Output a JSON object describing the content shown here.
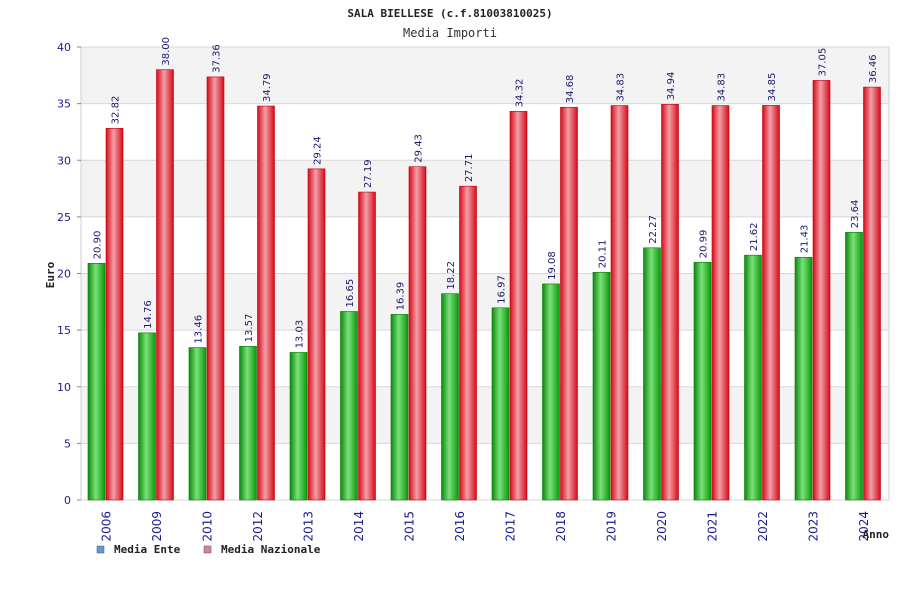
{
  "chart_data": {
    "type": "bar",
    "title": "SALA BIELLESE (c.f.81003810025)",
    "subtitle": "Media Importi",
    "ylabel": "Euro",
    "xlabel": "Anno",
    "ylim": [
      0,
      40
    ],
    "yticks": [
      0,
      5,
      10,
      15,
      20,
      25,
      30,
      35,
      40
    ],
    "categories": [
      "2006",
      "2009",
      "2010",
      "2012",
      "2013",
      "2014",
      "2015",
      "2016",
      "2017",
      "2018",
      "2019",
      "2020",
      "2021",
      "2022",
      "2023",
      "2024"
    ],
    "series": [
      {
        "name": "Media Ente",
        "values": [
          20.9,
          14.76,
          13.46,
          13.57,
          13.03,
          16.65,
          16.39,
          18.22,
          16.97,
          19.08,
          20.11,
          22.27,
          20.99,
          21.62,
          21.43,
          23.64
        ],
        "labels": [
          "20.90",
          "14.76",
          "13.46",
          "13.57",
          "13.03",
          "16.65",
          "16.39",
          "18.22",
          "16.97",
          "19.08",
          "20.11",
          "22.27",
          "20.99",
          "21.62",
          "21.43",
          "23.64"
        ],
        "color": "#10b010",
        "legend_color": "#5b9bd5"
      },
      {
        "name": "Media Nazionale",
        "values": [
          32.82,
          38.0,
          37.36,
          34.79,
          29.24,
          27.19,
          29.43,
          27.71,
          34.32,
          34.68,
          34.83,
          34.94,
          34.83,
          34.85,
          37.05,
          36.46
        ],
        "labels": [
          "32.82",
          "38.00",
          "37.36",
          "34.79",
          "29.24",
          "27.19",
          "29.43",
          "27.71",
          "34.32",
          "34.68",
          "34.83",
          "34.94",
          "34.83",
          "34.85",
          "37.05",
          "36.46"
        ],
        "color": "#e8101e",
        "legend_color": "#d77fa9"
      }
    ],
    "legend_position": "bottom-left",
    "grid": true
  }
}
